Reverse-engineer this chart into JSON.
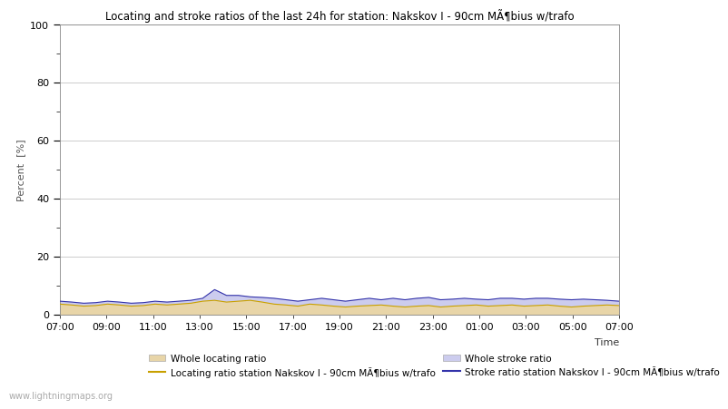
{
  "title": "Locating and stroke ratios of the last 24h for station: Nakskov I - 90cm MÃ¶bius w/trafo",
  "xlabel": "Time",
  "ylabel": "Percent  [%]",
  "ylim": [
    0,
    100
  ],
  "yticks_major": [
    0,
    20,
    40,
    60,
    80,
    100
  ],
  "yticks_minor": [
    10,
    30,
    50,
    70,
    90
  ],
  "xtick_labels": [
    "07:00",
    "09:00",
    "11:00",
    "13:00",
    "15:00",
    "17:00",
    "19:00",
    "21:00",
    "23:00",
    "01:00",
    "03:00",
    "05:00",
    "07:00"
  ],
  "grid_color": "#cccccc",
  "watermark": "www.lightningmaps.org",
  "whole_locating_fill_color": "#e8d5a8",
  "whole_stroke_fill_color": "#ccccee",
  "locating_line_color": "#c8a000",
  "stroke_line_color": "#3333aa",
  "whole_locating_ratio": [
    3.5,
    3.2,
    2.8,
    3.0,
    3.5,
    3.2,
    2.8,
    3.0,
    3.5,
    3.2,
    3.5,
    3.8,
    4.5,
    4.8,
    4.2,
    4.5,
    4.8,
    4.2,
    3.5,
    3.2,
    2.8,
    3.5,
    3.2,
    2.8,
    2.5,
    2.8,
    3.0,
    3.2,
    2.8,
    2.5,
    2.8,
    3.0,
    2.5,
    2.8,
    3.0,
    3.2,
    2.8,
    3.0,
    3.2,
    2.8,
    3.0,
    3.2,
    2.8,
    2.5,
    2.8,
    3.0,
    3.2,
    3.0
  ],
  "whole_stroke_ratio": [
    4.5,
    4.2,
    3.8,
    4.0,
    4.5,
    4.2,
    3.8,
    4.0,
    4.5,
    4.2,
    4.5,
    4.8,
    5.5,
    8.5,
    6.5,
    6.5,
    6.0,
    5.8,
    5.5,
    5.0,
    4.5,
    5.0,
    5.5,
    5.0,
    4.5,
    5.0,
    5.5,
    5.0,
    5.5,
    5.0,
    5.5,
    5.8,
    5.0,
    5.2,
    5.5,
    5.2,
    5.0,
    5.5,
    5.5,
    5.2,
    5.5,
    5.5,
    5.2,
    5.0,
    5.2,
    5.0,
    4.8,
    4.5
  ],
  "locating_station_ratio": [
    3.5,
    3.2,
    2.8,
    3.0,
    3.5,
    3.2,
    2.8,
    3.0,
    3.5,
    3.2,
    3.5,
    3.8,
    4.5,
    4.8,
    4.2,
    4.5,
    4.8,
    4.2,
    3.5,
    3.2,
    2.8,
    3.5,
    3.2,
    2.8,
    2.5,
    2.8,
    3.0,
    3.2,
    2.8,
    2.5,
    2.8,
    3.0,
    2.5,
    2.8,
    3.0,
    3.2,
    2.8,
    3.0,
    3.2,
    2.8,
    3.0,
    3.2,
    2.8,
    2.5,
    2.8,
    3.0,
    3.2,
    3.0
  ],
  "stroke_station_ratio": [
    4.5,
    4.2,
    3.8,
    4.0,
    4.5,
    4.2,
    3.8,
    4.0,
    4.5,
    4.2,
    4.5,
    4.8,
    5.5,
    8.5,
    6.5,
    6.5,
    6.0,
    5.8,
    5.5,
    5.0,
    4.5,
    5.0,
    5.5,
    5.0,
    4.5,
    5.0,
    5.5,
    5.0,
    5.5,
    5.0,
    5.5,
    5.8,
    5.0,
    5.2,
    5.5,
    5.2,
    5.0,
    5.5,
    5.5,
    5.2,
    5.5,
    5.5,
    5.2,
    5.0,
    5.2,
    5.0,
    4.8,
    4.5
  ],
  "n_points": 48,
  "legend_loc_ratio_label": "Whole locating ratio",
  "legend_str_ratio_label": "Whole stroke ratio",
  "legend_loc_line_label": "Locating ratio station Nakskov I - 90cm MÃ¶bius w/trafo",
  "legend_str_line_label": "Stroke ratio station Nakskov I - 90cm MÃ¶bius w/trafo"
}
